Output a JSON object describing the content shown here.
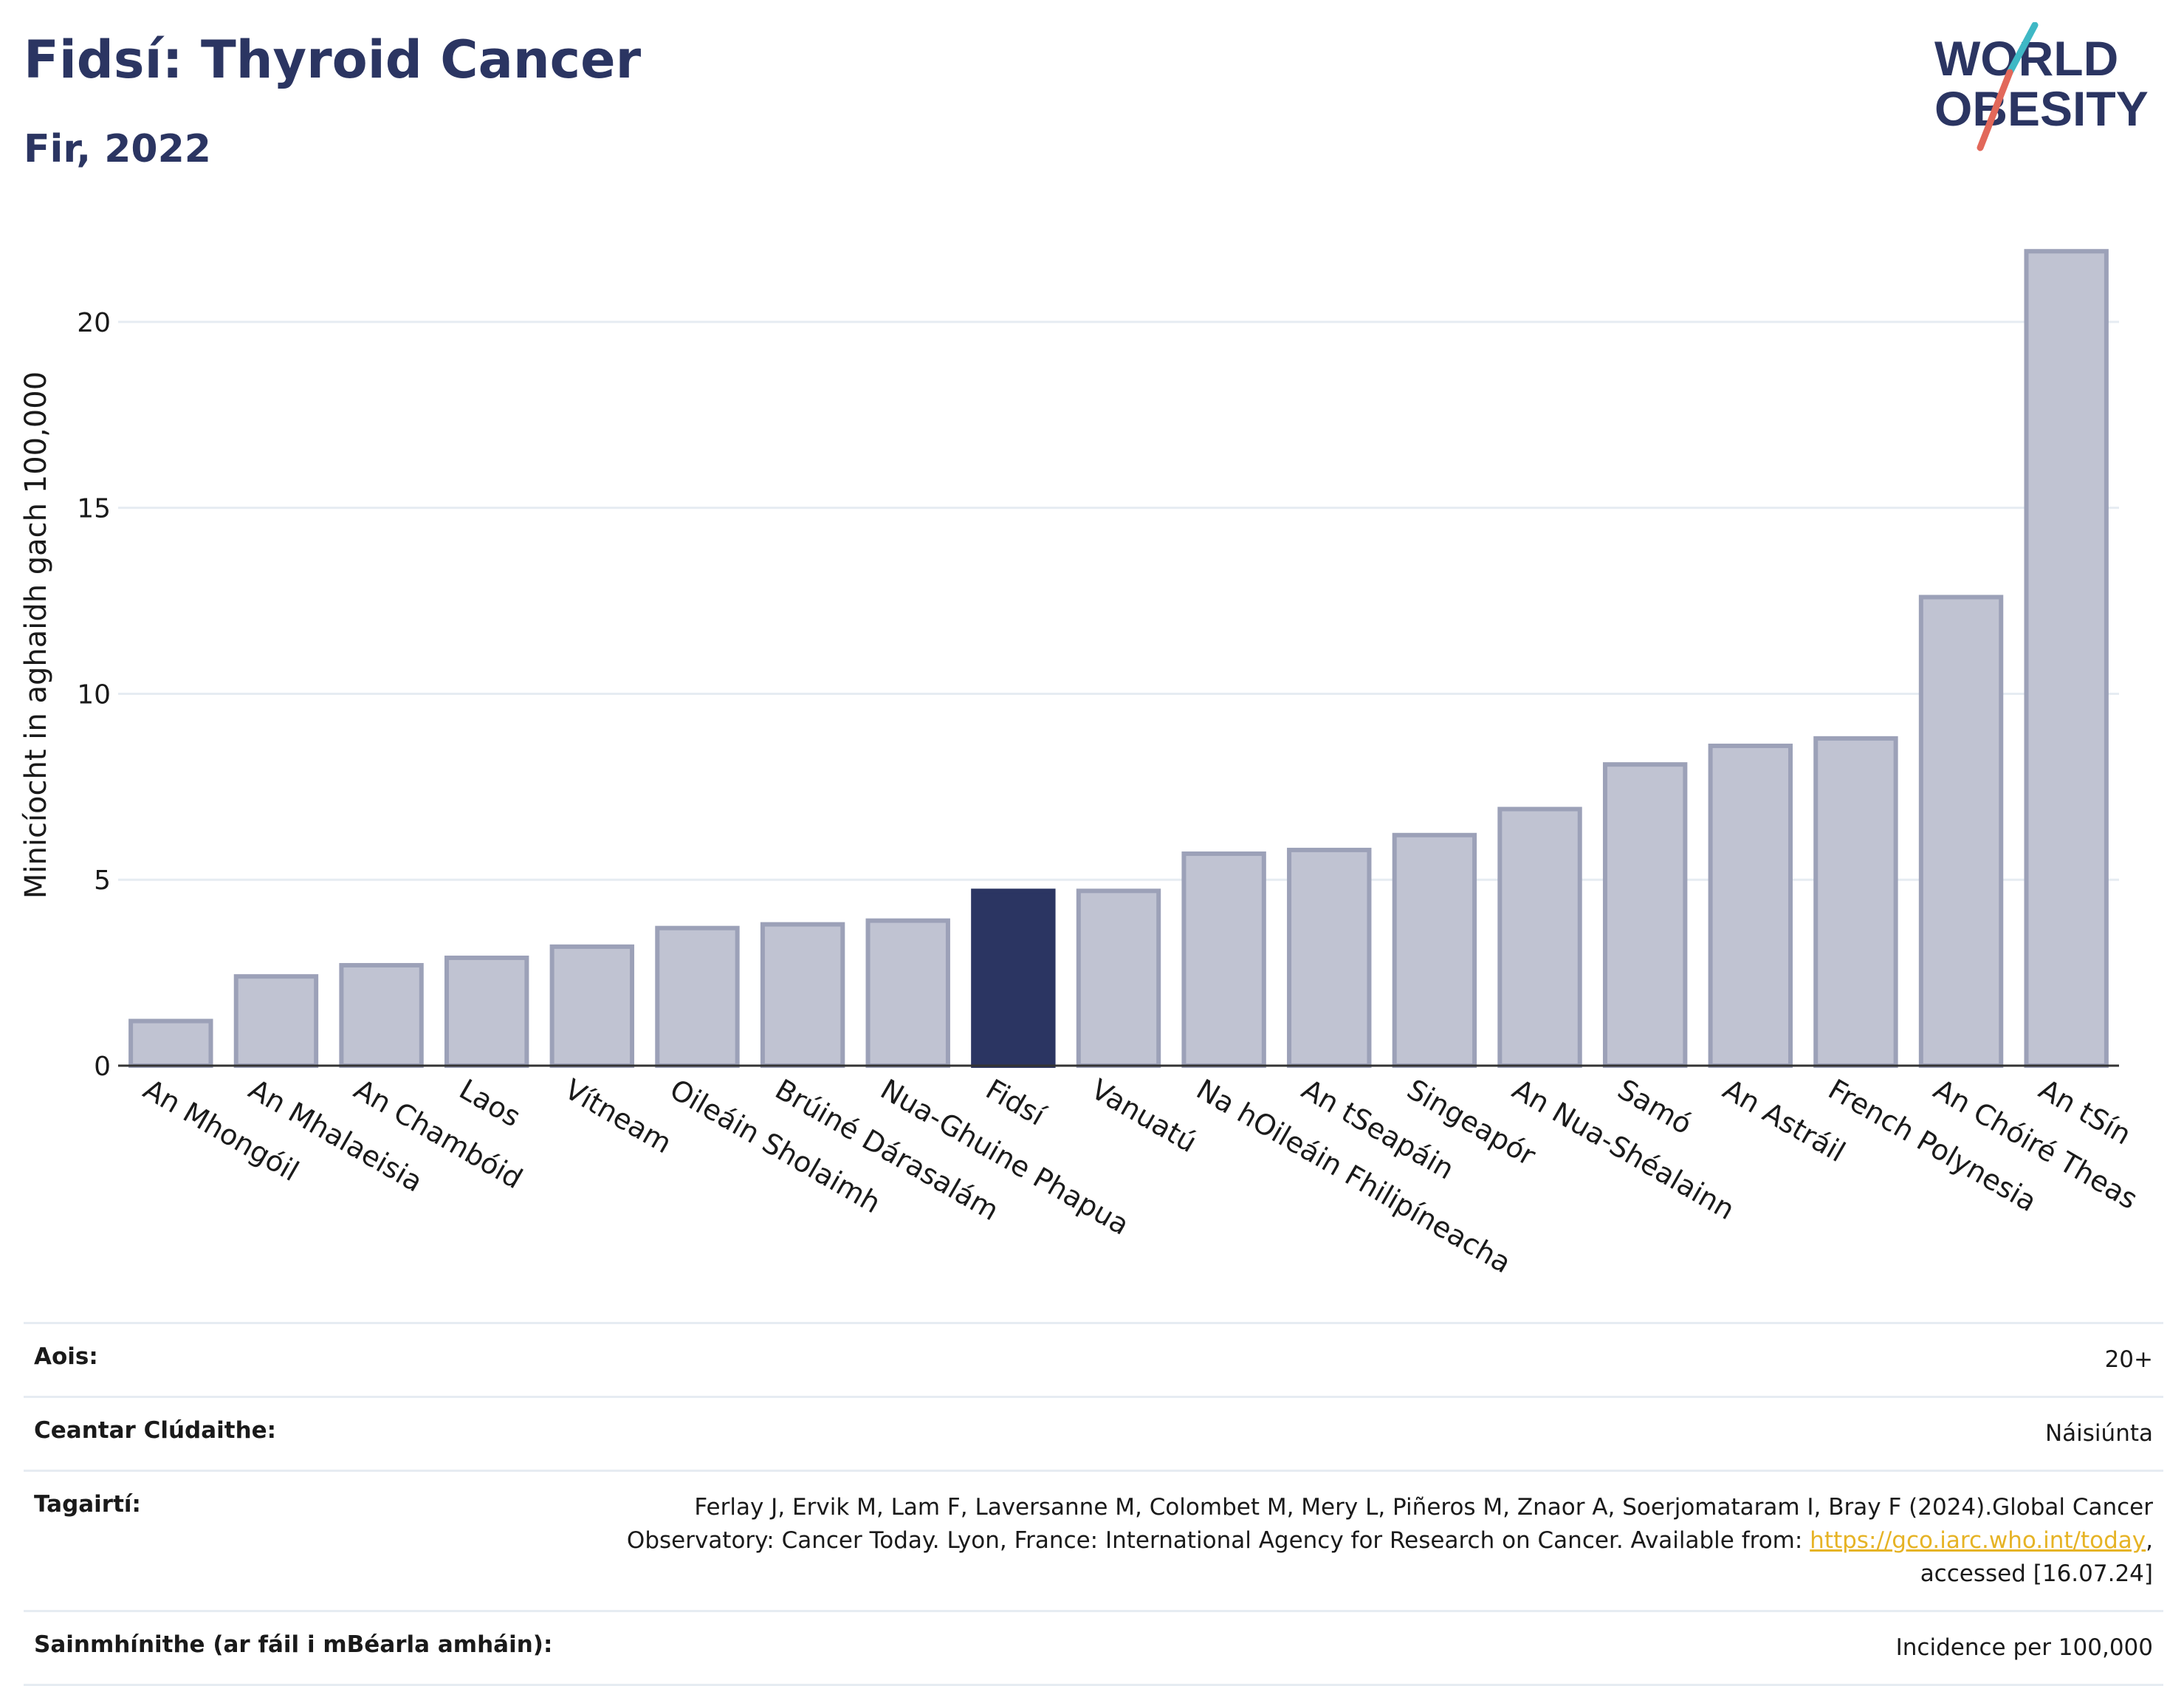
{
  "header": {
    "title": "Fidsí: Thyroid Cancer",
    "subtitle": "Fir, 2022"
  },
  "logo": {
    "line1": "WORLD",
    "line2": "OBESITY",
    "colors": {
      "text": "#2b3562",
      "stroke_teal": "#3fb8c5",
      "stroke_red": "#e2685a"
    }
  },
  "chart_data": {
    "type": "bar",
    "ylabel": "Minicíocht in aghaidh gach 100,000",
    "xlabel": "",
    "ylim": [
      0,
      22.5
    ],
    "yticks": [
      0,
      5,
      10,
      15,
      20
    ],
    "grid": true,
    "highlight": "Fidsí",
    "colors": {
      "bar": "#c0c3d2",
      "bar_border": "#9ca1b8",
      "highlight": "#2b3562"
    },
    "categories": [
      "An Mhongóil",
      "An Mhalaeisia",
      "An Chambóid",
      "Laos",
      "Vítneam",
      "Oileáin Sholaimh",
      "Brúiné Dárasalám",
      "Nua-Ghuine Phapua",
      "Fidsí",
      "Vanuatú",
      "Na hOileáin Fhilipíneacha",
      "An tSeapáin",
      "Singeapór",
      "An Nua-Shéalainn",
      "Samó",
      "An Astráil",
      "French Polynesia",
      "An Chóiré Theas",
      "An tSín"
    ],
    "values": [
      1.2,
      2.4,
      2.7,
      2.9,
      3.2,
      3.7,
      3.8,
      3.9,
      4.7,
      4.7,
      5.7,
      5.8,
      6.2,
      6.9,
      8.1,
      8.6,
      8.8,
      12.6,
      21.9
    ]
  },
  "info": {
    "age_label": "Aois:",
    "age_value": "20+",
    "coverage_label": "Ceantar Clúdaithe:",
    "coverage_value": "Náisiúnta",
    "refs_label": "Tagairtí:",
    "refs_text_1": "Ferlay J, Ervik M, Lam F, Laversanne M, Colombet M, Mery L, Piñeros M, Znaor A, Soerjomataram I, Bray F (2024).Global Cancer Observatory: Cancer Today. Lyon, France: International Agency for Research on Cancer. Available from: ",
    "refs_link": "https://gco.iarc.who.int/today",
    "refs_text_2": ", accessed [16.07.24]",
    "defs_label": "Sainmhínithe (ar fáil i mBéarla amháin):",
    "defs_value": "Incidence per 100,000"
  }
}
